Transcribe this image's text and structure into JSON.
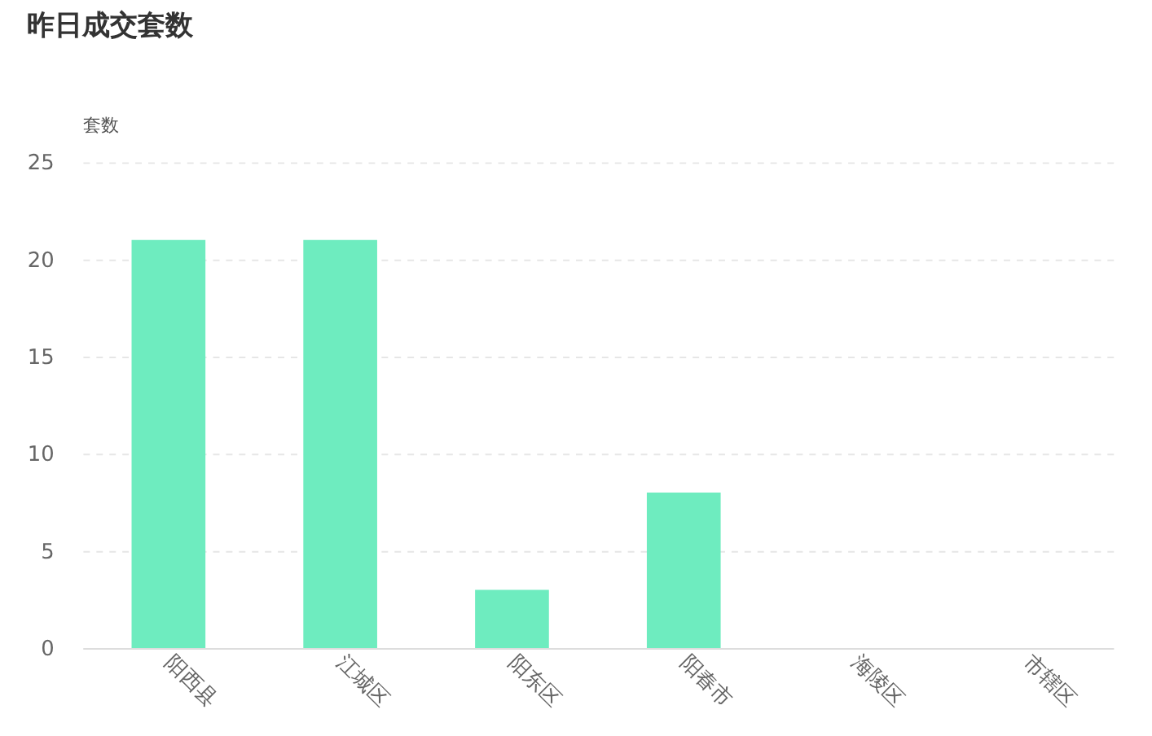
{
  "chart_data": {
    "type": "bar",
    "title": "昨日成交套数",
    "ylabel": "套数",
    "categories": [
      "阳西县",
      "江城区",
      "阳东区",
      "阳春市",
      "海陵区",
      "市辖区"
    ],
    "values": [
      21,
      21,
      3,
      8,
      0,
      0
    ],
    "color": "#6eecbf",
    "ylim": [
      0,
      25
    ],
    "yticks": [
      0,
      5,
      10,
      15,
      20,
      25
    ],
    "grid": "y"
  }
}
